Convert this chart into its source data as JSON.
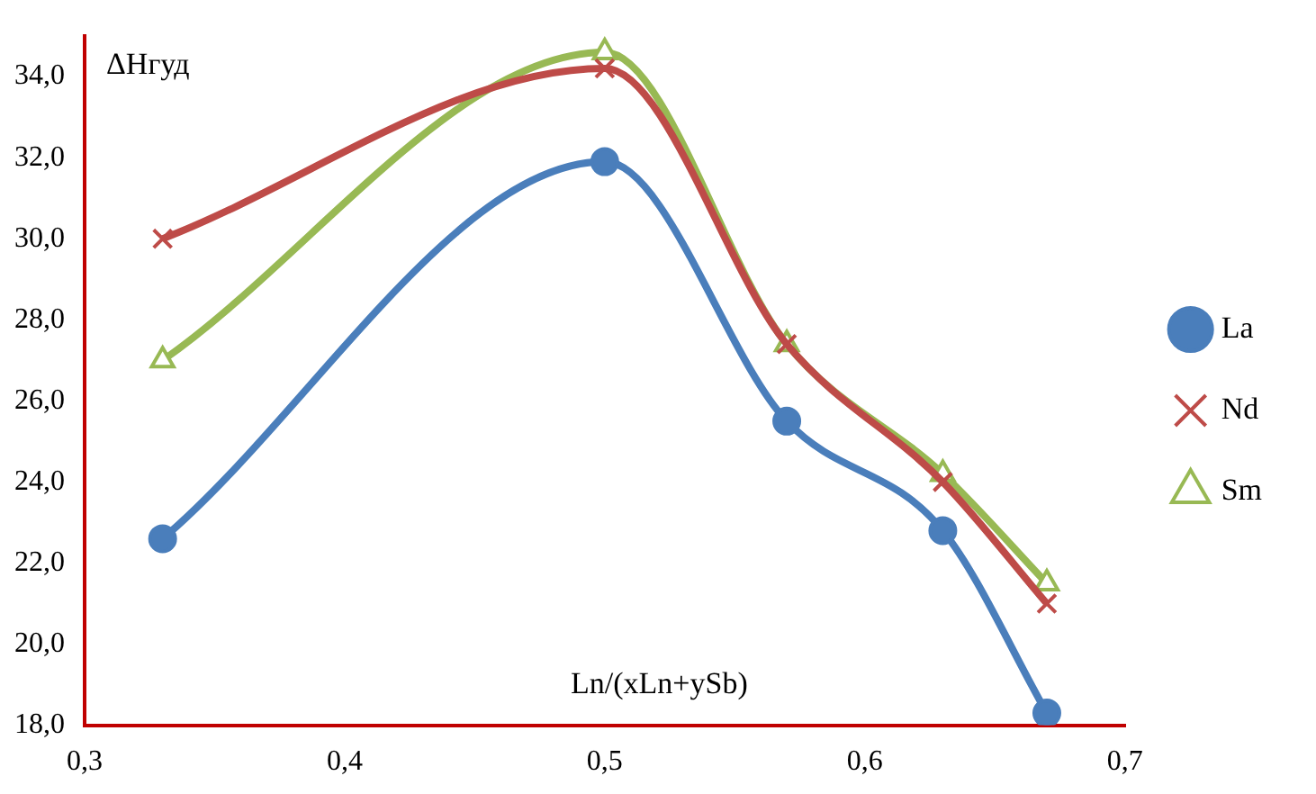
{
  "chart_data": {
    "type": "line",
    "xlabel": "Ln/(xLn+ySb)",
    "ylabel": "ΔHгуд",
    "x": [
      0.33,
      0.5,
      0.57,
      0.63,
      0.67
    ],
    "series": [
      {
        "name": "La",
        "color": "#4a7ebb",
        "marker": "circle",
        "values": [
          22.6,
          31.9,
          25.5,
          22.8,
          18.3
        ]
      },
      {
        "name": "Nd",
        "color": "#be4b48",
        "marker": "cross",
        "values": [
          30.0,
          34.2,
          27.4,
          24.0,
          21.0
        ]
      },
      {
        "name": "Sm",
        "color": "#98b954",
        "marker": "triangle",
        "values": [
          27.0,
          34.6,
          27.4,
          24.2,
          21.5
        ]
      }
    ],
    "xlim": [
      0.3,
      0.7
    ],
    "xticks": [
      {
        "value": 0.3,
        "label": "0,3"
      },
      {
        "value": 0.4,
        "label": "0,4"
      },
      {
        "value": 0.5,
        "label": "0,5"
      },
      {
        "value": 0.6,
        "label": "0,6"
      },
      {
        "value": 0.7,
        "label": "0,7"
      }
    ],
    "ylim": [
      18,
      35
    ],
    "yticks": [
      {
        "value": 18,
        "label": "18,0"
      },
      {
        "value": 20,
        "label": "20,0"
      },
      {
        "value": 22,
        "label": "22,0"
      },
      {
        "value": 24,
        "label": "24,0"
      },
      {
        "value": 26,
        "label": "26,0"
      },
      {
        "value": 28,
        "label": "28,0"
      },
      {
        "value": 30,
        "label": "30,0"
      },
      {
        "value": 32,
        "label": "32,0"
      },
      {
        "value": 34,
        "label": "34,0"
      }
    ],
    "grid": false,
    "legend": "right"
  }
}
